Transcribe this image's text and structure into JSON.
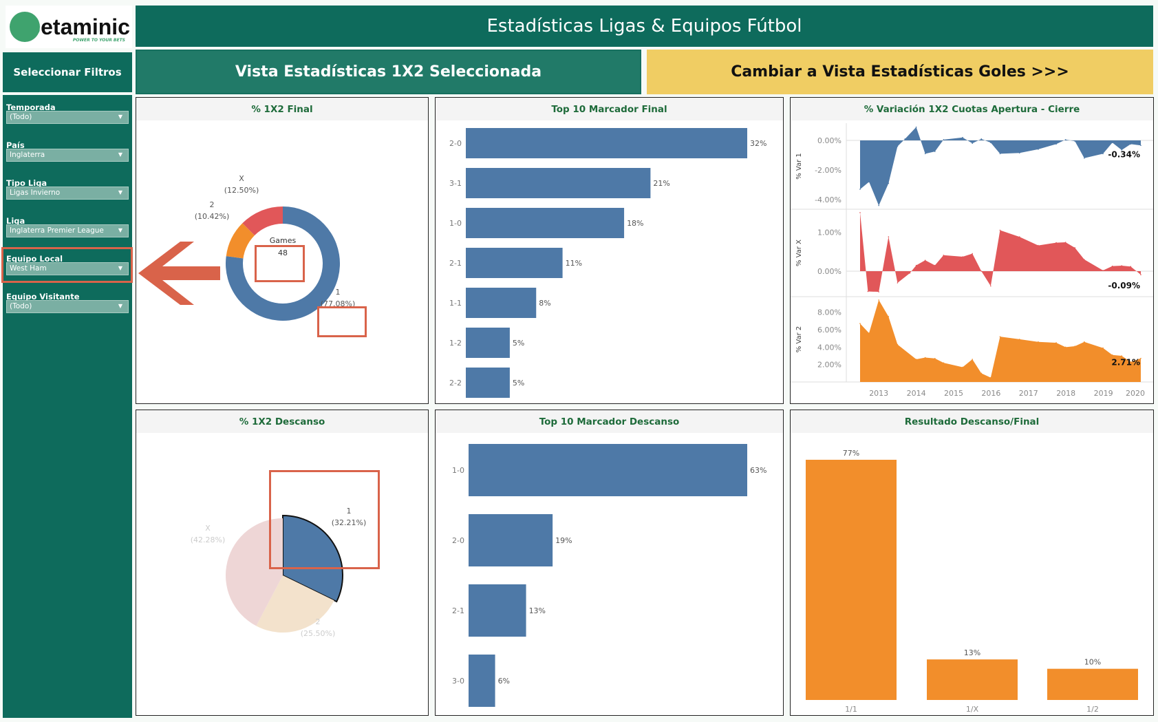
{
  "logo": {
    "text_b": "B",
    "text_rest": "etaminic",
    "tagline": "POWER TO YOUR BETS"
  },
  "header": {
    "title": "Estadísticas Ligas & Equipos Fútbol"
  },
  "sidebar": {
    "title": "Seleccionar Filtros",
    "filters": [
      {
        "label": "Temporada",
        "value": "(Todo)"
      },
      {
        "label": "País",
        "value": "Inglaterra"
      },
      {
        "label": "Tipo Liga",
        "value": "Ligas Invierno"
      },
      {
        "label": "Liga",
        "value": "Inglaterra Premier League"
      },
      {
        "label": "Equipo Local",
        "value": "West Ham"
      },
      {
        "label": "Equipo Visitante",
        "value": "(Todo)"
      }
    ]
  },
  "tabs": {
    "current": "Vista Estadísticas 1X2 Seleccionada",
    "switch": "Cambiar a Vista Estadísticas Goles >>>"
  },
  "colors": {
    "brand": "#0e6b5c",
    "accent": "#f0cd63",
    "blue": "#4e79a7",
    "red": "#e15759",
    "orange": "#f28e2b",
    "highlight": "#d9634a"
  },
  "chart_data": [
    {
      "id": "final1x2",
      "type": "pie",
      "title": "% 1X2 Final",
      "center_label": "Games",
      "center_value": "48",
      "slices": [
        {
          "label": "1",
          "value": 77.08,
          "text": "(77.08%)",
          "color": "#4e79a7"
        },
        {
          "label": "2",
          "value": 10.42,
          "text": "(10.42%)",
          "color": "#f28e2b"
        },
        {
          "label": "X",
          "value": 12.5,
          "text": "(12.50%)",
          "color": "#e15759"
        }
      ]
    },
    {
      "id": "topFinal",
      "type": "bar",
      "title": "Top 10 Marcador Final",
      "orientation": "horizontal",
      "categories": [
        "2-0",
        "3-1",
        "1-0",
        "2-1",
        "1-1",
        "1-2",
        "2-2"
      ],
      "values": [
        32,
        21,
        18,
        11,
        8,
        5,
        5
      ],
      "labels": [
        "32%",
        "21%",
        "18%",
        "11%",
        "8%",
        "5%",
        "5%"
      ]
    },
    {
      "id": "variacion",
      "type": "area",
      "title": "% Variación 1X2 Cuotas Apertura - Cierre",
      "x_ticks": [
        "2013",
        "2014",
        "2015",
        "2016",
        "2017",
        "2018",
        "2019",
        "2020"
      ],
      "series": [
        {
          "name": "% Var 1",
          "color": "#4e79a7",
          "y_ticks": [
            "0.00%",
            "-2.00%",
            "-4.00%"
          ],
          "end_label": "-0.34%",
          "x": [
            2012.5,
            2012.74,
            2013.0,
            2013.26,
            2013.5,
            2013.7,
            2014.0,
            2014.24,
            2014.5,
            2014.73,
            2015.24,
            2015.5,
            2015.74,
            2015.99,
            2016.24,
            2016.76,
            2017.26,
            2017.74,
            2017.99,
            2018.24,
            2018.49,
            2018.99,
            2019.24,
            2019.49,
            2019.73,
            2020.0
          ],
          "y": [
            -3.3,
            -2.8,
            -4.4,
            -2.9,
            -0.4,
            0.1,
            0.9,
            -0.9,
            -0.75,
            0.05,
            0.2,
            -0.2,
            0.1,
            -0.15,
            -0.9,
            -0.85,
            -0.6,
            -0.25,
            0.05,
            -0.05,
            -1.2,
            -0.9,
            -0.15,
            -0.65,
            -0.25,
            -0.34
          ]
        },
        {
          "name": "% Var X",
          "color": "#e15759",
          "y_ticks": [
            "1.00%",
            "0.00%"
          ],
          "end_label": "-0.09%",
          "x": [
            2012.5,
            2012.71,
            2013.0,
            2013.26,
            2013.5,
            2013.83,
            2014.0,
            2014.24,
            2014.5,
            2014.73,
            2015.24,
            2015.5,
            2015.74,
            2015.99,
            2016.24,
            2016.76,
            2017.26,
            2017.74,
            2017.99,
            2018.24,
            2018.49,
            2018.99,
            2019.24,
            2019.49,
            2019.73,
            2020.0
          ],
          "y": [
            1.5,
            -0.52,
            -0.53,
            0.88,
            -0.3,
            -0.05,
            0.15,
            0.28,
            0.15,
            0.41,
            0.37,
            0.45,
            0.0,
            -0.38,
            1.05,
            0.88,
            0.66,
            0.73,
            0.74,
            0.6,
            0.3,
            0.02,
            0.13,
            0.14,
            0.12,
            -0.09
          ]
        },
        {
          "name": "% Var 2",
          "color": "#f28e2b",
          "y_ticks": [
            "8.00%",
            "6.00%",
            "4.00%",
            "2.00%"
          ],
          "end_label": "2.71%",
          "x": [
            2012.5,
            2012.74,
            2013.0,
            2013.26,
            2013.5,
            2014.0,
            2014.24,
            2014.5,
            2014.73,
            2015.24,
            2015.5,
            2015.74,
            2015.99,
            2016.24,
            2016.76,
            2017.26,
            2017.74,
            2017.99,
            2018.24,
            2018.49,
            2018.99,
            2019.24,
            2019.49,
            2019.73,
            2020.0
          ],
          "y": [
            6.7,
            5.6,
            9.4,
            7.5,
            4.3,
            2.6,
            2.8,
            2.7,
            2.2,
            1.7,
            2.6,
            1.0,
            0.5,
            5.2,
            4.9,
            4.6,
            4.5,
            4.0,
            4.1,
            4.6,
            3.9,
            3.1,
            3.0,
            2.3,
            2.71
          ]
        }
      ]
    },
    {
      "id": "descanso1x2",
      "type": "pie",
      "title": "% 1X2 Descanso",
      "slices": [
        {
          "label": "1",
          "value": 32.21,
          "text": "(32.21%)",
          "color": "#4e79a7"
        },
        {
          "label": "2",
          "value": 25.5,
          "text": "(25.50%)",
          "color": "#f3e2cc"
        },
        {
          "label": "X",
          "value": 42.28,
          "text": "(42.28%)",
          "color": "#eed6d6"
        }
      ]
    },
    {
      "id": "topDescanso",
      "type": "bar",
      "title": "Top 10 Marcador Descanso",
      "orientation": "horizontal",
      "categories": [
        "1-0",
        "2-0",
        "2-1",
        "3-0"
      ],
      "values": [
        63,
        19,
        13,
        6
      ],
      "labels": [
        "63%",
        "19%",
        "13%",
        "6%"
      ]
    },
    {
      "id": "resultado",
      "type": "bar",
      "title": "Resultado Descanso/Final",
      "orientation": "vertical",
      "categories": [
        "1/1",
        "1/X",
        "1/2"
      ],
      "values": [
        77,
        13,
        10
      ],
      "labels": [
        "77%",
        "13%",
        "10%"
      ]
    }
  ]
}
